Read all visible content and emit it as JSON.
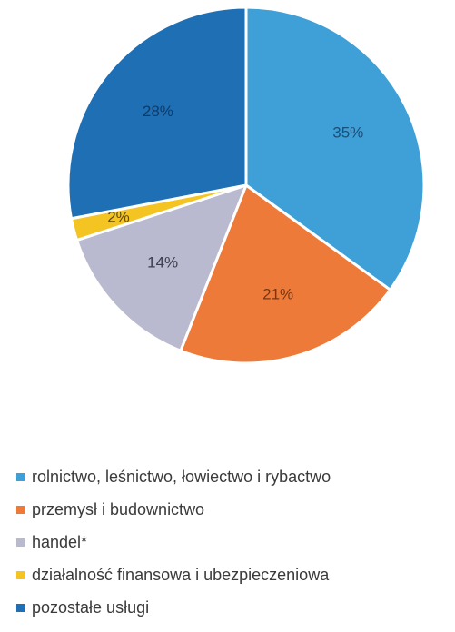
{
  "chart_data": {
    "type": "pie",
    "slices": [
      {
        "label": "rolnictwo, leśnictwo, łowiectwo i rybactwo",
        "value": 35,
        "display": "35%",
        "color": "#3fa0d8",
        "label_color": "#1a4f7a"
      },
      {
        "label": "przemysł i budownictwo",
        "value": 21,
        "display": "21%",
        "color": "#ee7a3a",
        "label_color": "#7a3510"
      },
      {
        "label": "handel*",
        "value": 14,
        "display": "14%",
        "color": "#b9b9cf",
        "label_color": "#3c3c4c"
      },
      {
        "label": "działalność finansowa i ubezpieczeniowa",
        "value": 2,
        "display": "2%",
        "color": "#f4c423",
        "label_color": "#5a4a10"
      },
      {
        "label": "pozostałe usługi",
        "value": 28,
        "display": "28%",
        "color": "#1f6fb5",
        "label_color": "#0f3a66"
      }
    ],
    "start_angle_deg": 0,
    "direction": "clockwise",
    "legend_position": "bottom"
  }
}
